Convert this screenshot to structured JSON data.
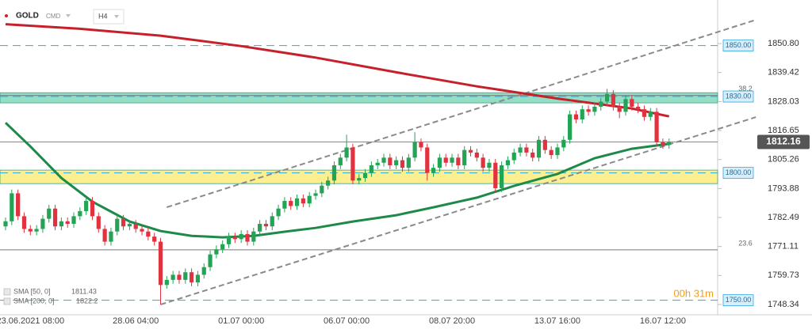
{
  "header": {
    "symbol": "GOLD",
    "market": "CMD",
    "timeframe": "H4"
  },
  "chart_data": {
    "type": "candlestick",
    "categories": [
      null,
      null,
      null,
      null,
      "23.06.2021 08:00",
      null,
      null,
      null,
      null,
      null,
      null,
      null,
      null,
      null,
      null,
      null,
      null,
      null,
      null,
      null,
      null,
      "28.06 04:00",
      null,
      null,
      null,
      null,
      null,
      null,
      null,
      null,
      null,
      null,
      null,
      null,
      null,
      null,
      null,
      null,
      "01.07 00:00",
      null,
      null,
      null,
      null,
      null,
      null,
      null,
      null,
      null,
      null,
      null,
      null,
      null,
      null,
      null,
      null,
      "06.07 00:00",
      null,
      null,
      null,
      null,
      null,
      null,
      null,
      null,
      null,
      null,
      null,
      null,
      null,
      null,
      null,
      null,
      "08.07 20:00",
      null,
      null,
      null,
      null,
      null,
      null,
      null,
      null,
      null,
      null,
      null,
      null,
      null,
      null,
      null,
      null,
      "13.07 16:00",
      null,
      null,
      null,
      null,
      null,
      null,
      null,
      null,
      null,
      null,
      null,
      null,
      null,
      null,
      null,
      null,
      "16.07 12:00",
      null
    ],
    "open": [
      1779,
      1781,
      1792,
      1783,
      1778,
      1777,
      1778,
      1782,
      1786,
      1779,
      1781,
      1780,
      1783,
      1785,
      1789,
      1783,
      1778,
      1773,
      1777,
      1782,
      1779,
      1780,
      1778,
      1777,
      1775,
      1773,
      1756,
      1758,
      1760,
      1758,
      1761,
      1757,
      1760,
      1763,
      1768,
      1770,
      1772,
      1775,
      1774,
      1776,
      1773,
      1777,
      1780,
      1779,
      1783,
      1786,
      1789,
      1787,
      1790,
      1788,
      1791,
      1792,
      1795,
      1797,
      1803,
      1806,
      1810,
      1797,
      1798,
      1800,
      1803,
      1804,
      1806,
      1803,
      1805,
      1802,
      1806,
      1812,
      1810,
      1800,
      1802,
      1806,
      1804,
      1806,
      1803,
      1809,
      1808,
      1806,
      1802,
      1804,
      1794,
      1803,
      1805,
      1808,
      1810,
      1808,
      1806,
      1813,
      1809,
      1807,
      1810,
      1813,
      1823,
      1821,
      1825,
      1824,
      1826,
      1828,
      1831,
      1826,
      1824,
      1829,
      1826,
      1825,
      1822,
      1824,
      1812,
      1811
    ],
    "high": [
      1782.5,
      1793.5,
      1793.5,
      1784.5,
      1779.5,
      1779.5,
      1783.5,
      1787.5,
      1787.5,
      1782.5,
      1782.5,
      1784.5,
      1786.5,
      1790.5,
      1790.5,
      1784.5,
      1779.5,
      1778.5,
      1783.5,
      1783.5,
      1781.5,
      1781.5,
      1779.5,
      1778.5,
      1776.5,
      1774.5,
      1759.5,
      1761.5,
      1761.5,
      1762.5,
      1762.5,
      1761.5,
      1764.5,
      1769.5,
      1771.5,
      1773.5,
      1776.5,
      1776.5,
      1777.5,
      1777.5,
      1778.5,
      1781.5,
      1781.5,
      1784.5,
      1787.5,
      1790.5,
      1790.5,
      1791.5,
      1791.5,
      1792.5,
      1793.5,
      1796.5,
      1798.5,
      1804.5,
      1807.5,
      1815,
      1811.5,
      1799.5,
      1801.5,
      1804.5,
      1805.5,
      1807.5,
      1807.5,
      1806.5,
      1806.5,
      1807.5,
      1816,
      1813.5,
      1811.5,
      1803.5,
      1807.5,
      1807.5,
      1807.5,
      1807.5,
      1810.5,
      1810.5,
      1809.5,
      1807.5,
      1805.5,
      1805.5,
      1804.5,
      1806.5,
      1809.5,
      1811.5,
      1811.5,
      1809.5,
      1814.5,
      1814.5,
      1810.5,
      1811.5,
      1814.5,
      1824.5,
      1824.5,
      1826.5,
      1826.5,
      1827.5,
      1829.5,
      1833,
      1832.5,
      1827.5,
      1830.5,
      1830.5,
      1827.5,
      1826.5,
      1825.5,
      1825.5,
      1813.5,
      1813.5
    ],
    "low": [
      1777.5,
      1779.5,
      1781.5,
      1776.5,
      1775.5,
      1775.5,
      1776.5,
      1780.5,
      1777.5,
      1777.5,
      1778.5,
      1778.5,
      1781.5,
      1783.5,
      1781.5,
      1776.5,
      1771.5,
      1771.5,
      1775.5,
      1777.5,
      1777.5,
      1776.5,
      1775.5,
      1773.5,
      1771.5,
      1748.34,
      1754.5,
      1756.5,
      1756.5,
      1756.5,
      1755.5,
      1755.5,
      1758.5,
      1761.5,
      1766.5,
      1768.5,
      1770.5,
      1772.5,
      1772.5,
      1771.5,
      1771.5,
      1775.5,
      1777.5,
      1777.5,
      1781.5,
      1784.5,
      1785.5,
      1785.5,
      1786.5,
      1786.5,
      1789.5,
      1790.5,
      1793.5,
      1795.5,
      1801.5,
      1804.5,
      1795.5,
      1795.5,
      1796.5,
      1798.5,
      1801.5,
      1802.5,
      1801.5,
      1801.5,
      1800.5,
      1800.5,
      1804.5,
      1808.5,
      1797,
      1798.5,
      1800.5,
      1802.5,
      1802.5,
      1801.5,
      1801.5,
      1806.5,
      1804.5,
      1800.5,
      1800.5,
      1792.5,
      1792.5,
      1801.5,
      1803.5,
      1806.5,
      1806.5,
      1804.5,
      1804.5,
      1807.5,
      1805.5,
      1805.5,
      1808.5,
      1811.5,
      1819.5,
      1819.5,
      1822.5,
      1822.5,
      1824.5,
      1826.5,
      1824.5,
      1821.5,
      1822.5,
      1824.5,
      1823.5,
      1820.5,
      1820.5,
      1810.5,
      1809.5,
      1809.5
    ],
    "close": [
      1781,
      1792,
      1783,
      1778,
      1777,
      1778,
      1782,
      1786,
      1779,
      1781,
      1780,
      1783,
      1785,
      1789,
      1783,
      1778,
      1773,
      1777,
      1782,
      1779,
      1780,
      1778,
      1777,
      1775,
      1773,
      1756,
      1758,
      1760,
      1758,
      1761,
      1757,
      1760,
      1763,
      1768,
      1770,
      1772,
      1775,
      1774,
      1776,
      1773,
      1777,
      1780,
      1779,
      1783,
      1786,
      1789,
      1787,
      1790,
      1788,
      1791,
      1792,
      1795,
      1797,
      1803,
      1806,
      1810,
      1797,
      1798,
      1800,
      1803,
      1804,
      1806,
      1803,
      1805,
      1802,
      1806,
      1812,
      1810,
      1800,
      1802,
      1806,
      1804,
      1806,
      1803,
      1809,
      1808,
      1806,
      1802,
      1804,
      1794,
      1803,
      1805,
      1808,
      1810,
      1808,
      1806,
      1813,
      1809,
      1807,
      1810,
      1813,
      1823,
      1821,
      1825,
      1824,
      1826,
      1828,
      1831,
      1826,
      1824,
      1829,
      1826,
      1825,
      1822,
      1824,
      1812,
      1811,
      1812.16
    ],
    "up_color": "#23a455",
    "down_color": "#e0333f",
    "ylim": [
      1744.3,
      1867.9
    ],
    "yticks": [
      {
        "value": 1850.8,
        "label": "1850.80"
      },
      1839.42,
      1828.03,
      1816.65,
      1805.26,
      1793.88,
      1782.49,
      1771.11,
      1759.73,
      1748.34
    ],
    "indicators": [
      {
        "name": "SMA [50, 0]",
        "last": 1811.43,
        "color": "#1e8a4a",
        "x": [
          0,
          4,
          9,
          14,
          20,
          25,
          30,
          35,
          40,
          45,
          50,
          56,
          63,
          69,
          76,
          82,
          89,
          95,
          101,
          107
        ],
        "values": [
          1819.7,
          1810.4,
          1798,
          1788.7,
          1780.9,
          1777.2,
          1775.3,
          1774.7,
          1775.3,
          1776.9,
          1778.4,
          1780.9,
          1783.4,
          1786.5,
          1790.3,
          1794.9,
          1799.6,
          1805.8,
          1809.5,
          1811.4
        ]
      },
      {
        "name": "SMA [200, 0]",
        "last": 1822.2,
        "color": "#c8202a",
        "x": [
          0,
          12,
          25,
          38,
          50,
          63,
          76,
          89,
          101,
          107
        ],
        "values": [
          1858.4,
          1856.6,
          1853.9,
          1849.8,
          1845.3,
          1839.5,
          1834,
          1829.2,
          1825.3,
          1822.2
        ]
      }
    ],
    "levels": [
      {
        "value": 1850,
        "label": "1850.00"
      },
      {
        "value": 1830,
        "label": "1830.00"
      },
      {
        "value": 1800,
        "label": "1800.00"
      },
      {
        "value": 1750,
        "label": "1750.00"
      }
    ],
    "zones": [
      {
        "from": 1827.5,
        "to": 1831.5,
        "color": "#6fd3b0"
      },
      {
        "from": 1795.8,
        "to": 1801.1,
        "color": "#fbe96a"
      }
    ],
    "fibonacci": [
      {
        "level": 38.2,
        "price": 1830.4
      },
      {
        "level": 23.6,
        "price": 1769.8
      }
    ],
    "trendlines": [
      {
        "x": [
          26,
          121
        ],
        "values": [
          1786.5,
          1860.1
        ]
      },
      {
        "x": [
          25,
          121
        ],
        "values": [
          1748.3,
          1821.9
        ]
      }
    ],
    "last_price": 1812.16,
    "timer": "00h 31m"
  }
}
